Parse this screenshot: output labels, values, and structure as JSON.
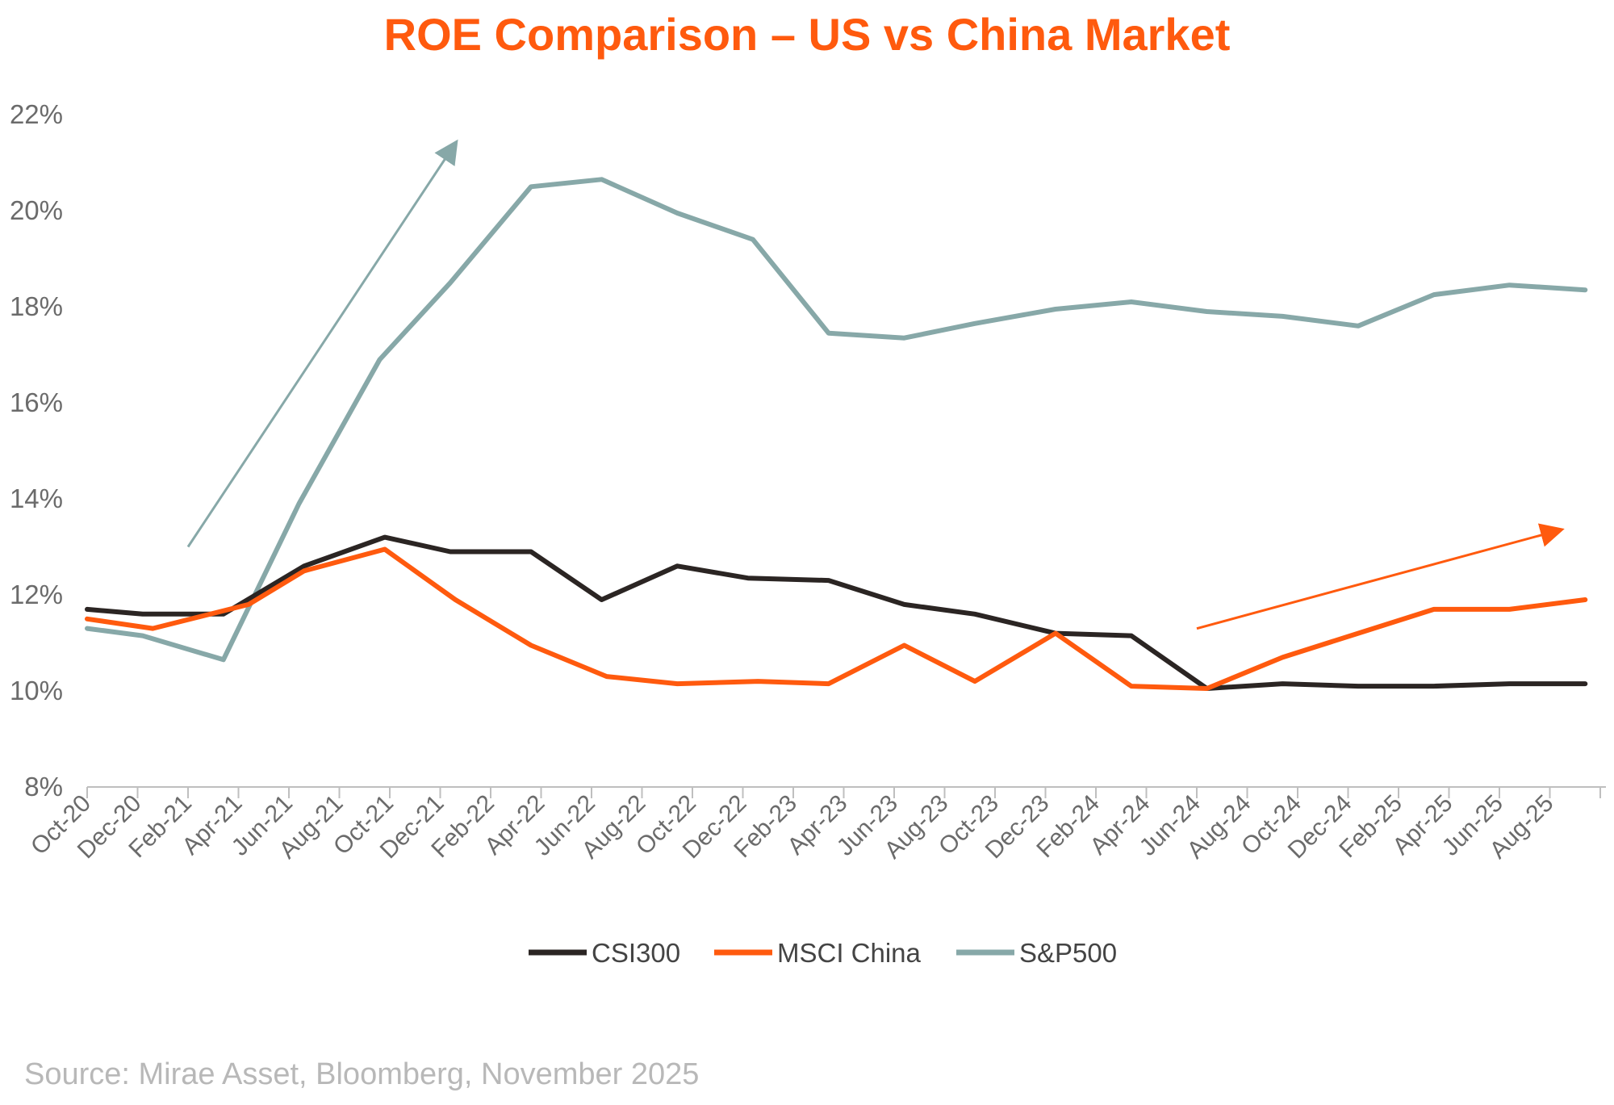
{
  "title": "ROE Comparison – US vs China Market",
  "source": "Source: Mirae Asset, Bloomberg, November 2025",
  "colors": {
    "title": "#FF5A0E",
    "csi300": "#2B2523",
    "msci_china": "#FF5A0E",
    "sp500": "#87A8A8",
    "axis": "#bfbfbf"
  },
  "chart_data": {
    "type": "line",
    "title": "ROE Comparison – US vs China Market",
    "xlabel": "",
    "ylabel": "",
    "ylim": [
      8,
      22
    ],
    "yticks": [
      8,
      10,
      12,
      14,
      16,
      18,
      20,
      22
    ],
    "ytick_labels": [
      "8%",
      "10%",
      "12%",
      "14%",
      "16%",
      "18%",
      "20%",
      "22%"
    ],
    "grid": false,
    "legend_position": "bottom-center",
    "categories": [
      "Oct-20",
      "Dec-20",
      "Feb-21",
      "Apr-21",
      "Jun-21",
      "Aug-21",
      "Oct-21",
      "Dec-21",
      "Feb-22",
      "Apr-22",
      "Jun-22",
      "Aug-22",
      "Oct-22",
      "Dec-22",
      "Feb-23",
      "Apr-23",
      "Jun-23",
      "Aug-23",
      "Oct-23",
      "Dec-23",
      "Feb-24",
      "Apr-24",
      "Jun-24",
      "Aug-24",
      "Oct-24",
      "Dec-24",
      "Feb-25",
      "Apr-25",
      "Jun-25",
      "Aug-25"
    ],
    "series": [
      {
        "name": "CSI300",
        "color": "#2B2523",
        "points": [
          [
            0,
            11.7
          ],
          [
            1.1,
            11.6
          ],
          [
            2.7,
            11.6
          ],
          [
            4.3,
            12.6
          ],
          [
            5.9,
            13.2
          ],
          [
            7.2,
            12.9
          ],
          [
            8.8,
            12.9
          ],
          [
            10.2,
            11.9
          ],
          [
            11.7,
            12.6
          ],
          [
            13.1,
            12.35
          ],
          [
            14.7,
            12.3
          ],
          [
            16.2,
            11.8
          ],
          [
            17.6,
            11.6
          ],
          [
            19.2,
            11.2
          ],
          [
            20.7,
            11.15
          ],
          [
            22.2,
            10.05
          ],
          [
            23.7,
            10.15
          ],
          [
            25.2,
            10.1
          ],
          [
            26.7,
            10.1
          ],
          [
            28.2,
            10.15
          ],
          [
            29.7,
            10.15
          ]
        ]
      },
      {
        "name": "MSCI China",
        "color": "#FF5A0E",
        "points": [
          [
            0,
            11.5
          ],
          [
            1.3,
            11.3
          ],
          [
            3.2,
            11.8
          ],
          [
            4.3,
            12.5
          ],
          [
            5.9,
            12.95
          ],
          [
            7.3,
            11.9
          ],
          [
            8.8,
            10.95
          ],
          [
            10.3,
            10.3
          ],
          [
            11.7,
            10.15
          ],
          [
            13.3,
            10.2
          ],
          [
            14.7,
            10.15
          ],
          [
            16.2,
            10.95
          ],
          [
            17.6,
            10.2
          ],
          [
            19.2,
            11.2
          ],
          [
            20.7,
            10.1
          ],
          [
            22.2,
            10.05
          ],
          [
            23.7,
            10.7
          ],
          [
            25.2,
            11.2
          ],
          [
            26.7,
            11.7
          ],
          [
            28.2,
            11.7
          ],
          [
            29.7,
            11.9
          ]
        ]
      },
      {
        "name": "S&P500",
        "color": "#87A8A8",
        "points": [
          [
            0,
            11.3
          ],
          [
            1.1,
            11.15
          ],
          [
            2.7,
            10.65
          ],
          [
            4.2,
            13.9
          ],
          [
            5.8,
            16.9
          ],
          [
            7.2,
            18.5
          ],
          [
            8.8,
            20.5
          ],
          [
            10.2,
            20.65
          ],
          [
            11.7,
            19.95
          ],
          [
            13.2,
            19.4
          ],
          [
            14.7,
            17.45
          ],
          [
            16.2,
            17.35
          ],
          [
            17.6,
            17.65
          ],
          [
            19.2,
            17.95
          ],
          [
            20.7,
            18.1
          ],
          [
            22.2,
            17.9
          ],
          [
            23.7,
            17.8
          ],
          [
            25.2,
            17.6
          ],
          [
            26.7,
            18.25
          ],
          [
            28.2,
            18.45
          ],
          [
            29.7,
            18.35
          ]
        ]
      }
    ],
    "annotations": [
      {
        "type": "arrow",
        "color": "#87A8A8",
        "from": [
          2.0,
          13.0
        ],
        "to": [
          7.3,
          21.4
        ]
      },
      {
        "type": "arrow",
        "color": "#FF5A0E",
        "from": [
          22.0,
          11.3
        ],
        "to": [
          29.2,
          13.35
        ]
      }
    ]
  }
}
